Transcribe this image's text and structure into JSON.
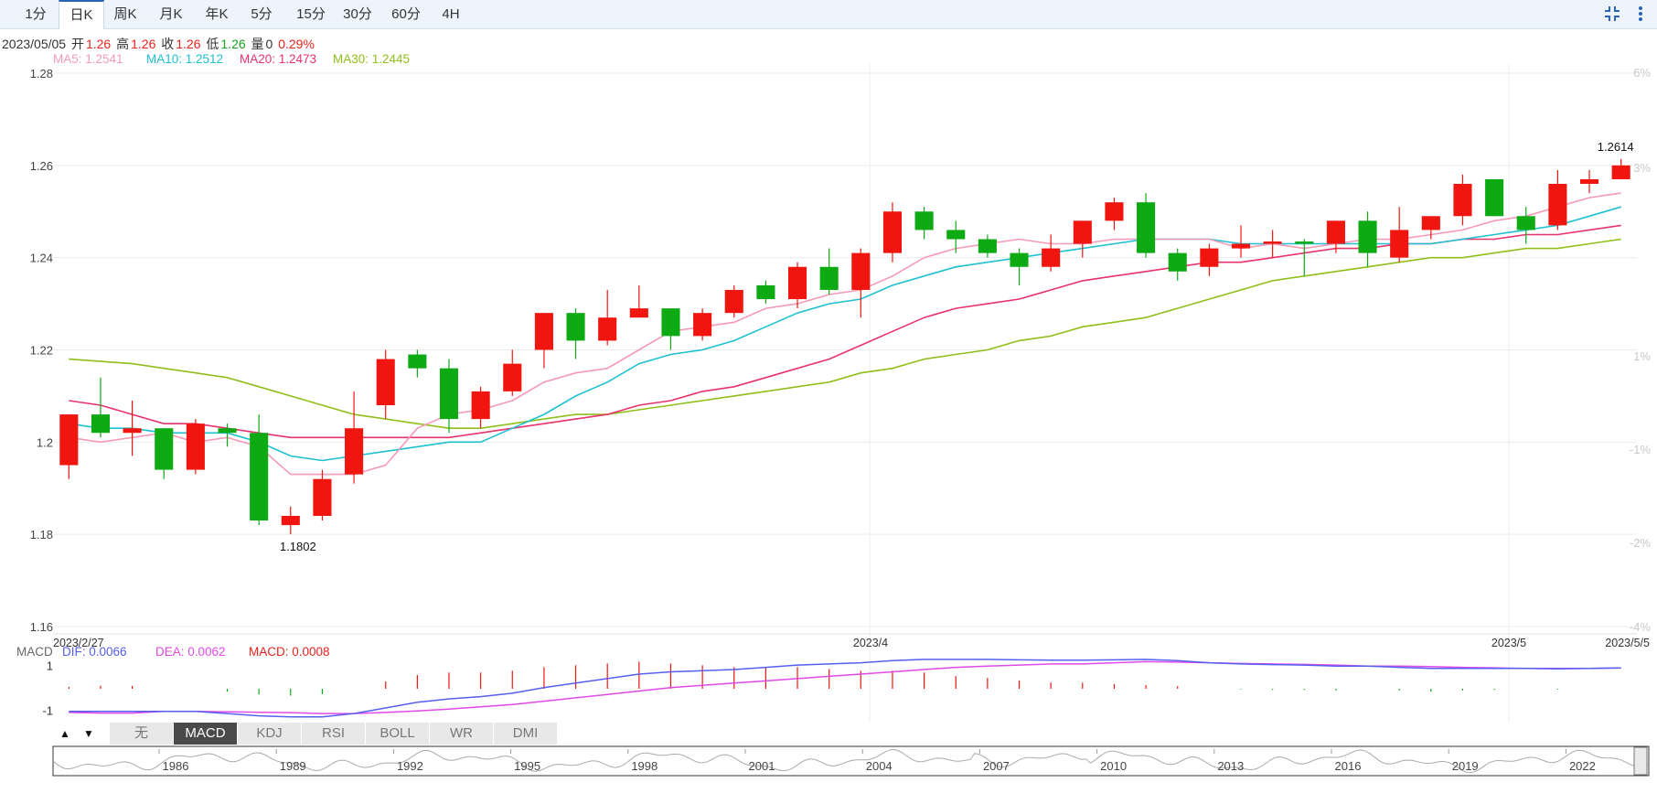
{
  "tabs": [
    {
      "label": "1分",
      "active": false
    },
    {
      "label": "日K",
      "active": true
    },
    {
      "label": "周K",
      "active": false
    },
    {
      "label": "月K",
      "active": false
    },
    {
      "label": "年K",
      "active": false
    },
    {
      "label": "5分",
      "active": false
    },
    {
      "label": "15分",
      "active": false
    },
    {
      "label": "30分",
      "active": false
    },
    {
      "label": "60分",
      "active": false
    },
    {
      "label": "4H",
      "active": false
    }
  ],
  "icons": {
    "collapse": "collapse-icon",
    "more": "more-vertical-icon"
  },
  "info": {
    "date": "2023/05/05",
    "open_label": "开",
    "open": "1.26",
    "high_label": "高",
    "high": "1.26",
    "close_label": "收",
    "close": "1.26",
    "low_label": "低",
    "low": "1.26",
    "vol_label": "量",
    "vol": "0",
    "change": "0.29%"
  },
  "ma_labels": {
    "ma5": "MA5: 1.2541",
    "ma10": "MA10: 1.2512",
    "ma20": "MA20: 1.2473",
    "ma30": "MA30: 1.2445"
  },
  "macd_labels": {
    "name": "MACD",
    "dif": "DIF: 0.0066",
    "dea": "DEA: 0.0062",
    "macd": "MACD: 0.0008"
  },
  "indicator_buttons": [
    {
      "label": "无",
      "active": false
    },
    {
      "label": "MACD",
      "active": true
    },
    {
      "label": "KDJ",
      "active": false
    },
    {
      "label": "RSI",
      "active": false
    },
    {
      "label": "BOLL",
      "active": false
    },
    {
      "label": "WR",
      "active": false
    },
    {
      "label": "DMI",
      "active": false
    }
  ],
  "colors": {
    "up": "#f0150e",
    "down": "#0eaa14",
    "ma5": "#f49ab8",
    "ma10": "#1ec0d2",
    "ma20": "#e8336a",
    "ma30": "#8fbf1a",
    "dif": "#5560f0",
    "dea": "#e04ae6"
  },
  "chart_data": {
    "type": "candlestick",
    "y_axis": {
      "min": 1.16,
      "max": 1.28,
      "ticks": [
        "1.28",
        "1.26",
        "1.24",
        "1.22",
        "1.2",
        "1.18",
        "1.16"
      ]
    },
    "pct_axis": {
      "ticks": [
        "6%",
        "3%",
        "1%",
        "-1%",
        "-2%",
        "-4%"
      ]
    },
    "x_labels": [
      "2023/2/27",
      "2023/4",
      "2023/5",
      "2023/5/5"
    ],
    "annotations": {
      "low": "1.1802",
      "high": "1.2614"
    },
    "candles": [
      {
        "o": 1.195,
        "c": 1.206,
        "h": 1.206,
        "l": 1.192
      },
      {
        "o": 1.206,
        "c": 1.202,
        "h": 1.214,
        "l": 1.201
      },
      {
        "o": 1.202,
        "c": 1.203,
        "h": 1.209,
        "l": 1.197
      },
      {
        "o": 1.203,
        "c": 1.194,
        "h": 1.203,
        "l": 1.192
      },
      {
        "o": 1.194,
        "c": 1.204,
        "h": 1.205,
        "l": 1.193
      },
      {
        "o": 1.203,
        "c": 1.202,
        "h": 1.204,
        "l": 1.199
      },
      {
        "o": 1.202,
        "c": 1.183,
        "h": 1.206,
        "l": 1.182
      },
      {
        "o": 1.182,
        "c": 1.184,
        "h": 1.186,
        "l": 1.18
      },
      {
        "o": 1.184,
        "c": 1.192,
        "h": 1.194,
        "l": 1.183
      },
      {
        "o": 1.193,
        "c": 1.203,
        "h": 1.211,
        "l": 1.191
      },
      {
        "o": 1.208,
        "c": 1.218,
        "h": 1.22,
        "l": 1.205
      },
      {
        "o": 1.219,
        "c": 1.216,
        "h": 1.22,
        "l": 1.214
      },
      {
        "o": 1.216,
        "c": 1.205,
        "h": 1.218,
        "l": 1.202
      },
      {
        "o": 1.205,
        "c": 1.211,
        "h": 1.212,
        "l": 1.203
      },
      {
        "o": 1.211,
        "c": 1.217,
        "h": 1.22,
        "l": 1.21
      },
      {
        "o": 1.22,
        "c": 1.228,
        "h": 1.228,
        "l": 1.216
      },
      {
        "o": 1.228,
        "c": 1.222,
        "h": 1.229,
        "l": 1.218
      },
      {
        "o": 1.222,
        "c": 1.227,
        "h": 1.233,
        "l": 1.221
      },
      {
        "o": 1.227,
        "c": 1.229,
        "h": 1.234,
        "l": 1.227
      },
      {
        "o": 1.229,
        "c": 1.223,
        "h": 1.229,
        "l": 1.22
      },
      {
        "o": 1.223,
        "c": 1.228,
        "h": 1.229,
        "l": 1.222
      },
      {
        "o": 1.228,
        "c": 1.233,
        "h": 1.234,
        "l": 1.227
      },
      {
        "o": 1.234,
        "c": 1.231,
        "h": 1.235,
        "l": 1.23
      },
      {
        "o": 1.231,
        "c": 1.238,
        "h": 1.239,
        "l": 1.229
      },
      {
        "o": 1.238,
        "c": 1.233,
        "h": 1.242,
        "l": 1.232
      },
      {
        "o": 1.233,
        "c": 1.241,
        "h": 1.242,
        "l": 1.227
      },
      {
        "o": 1.241,
        "c": 1.25,
        "h": 1.252,
        "l": 1.239
      },
      {
        "o": 1.25,
        "c": 1.246,
        "h": 1.251,
        "l": 1.244
      },
      {
        "o": 1.246,
        "c": 1.244,
        "h": 1.248,
        "l": 1.241
      },
      {
        "o": 1.244,
        "c": 1.241,
        "h": 1.245,
        "l": 1.24
      },
      {
        "o": 1.241,
        "c": 1.238,
        "h": 1.242,
        "l": 1.234
      },
      {
        "o": 1.238,
        "c": 1.242,
        "h": 1.245,
        "l": 1.237
      },
      {
        "o": 1.243,
        "c": 1.248,
        "h": 1.248,
        "l": 1.24
      },
      {
        "o": 1.248,
        "c": 1.252,
        "h": 1.253,
        "l": 1.246
      },
      {
        "o": 1.252,
        "c": 1.241,
        "h": 1.254,
        "l": 1.24
      },
      {
        "o": 1.241,
        "c": 1.237,
        "h": 1.242,
        "l": 1.235
      },
      {
        "o": 1.238,
        "c": 1.242,
        "h": 1.243,
        "l": 1.236
      },
      {
        "o": 1.242,
        "c": 1.243,
        "h": 1.247,
        "l": 1.24
      },
      {
        "o": 1.243,
        "c": 1.2435,
        "h": 1.246,
        "l": 1.24
      },
      {
        "o": 1.2435,
        "c": 1.243,
        "h": 1.244,
        "l": 1.236
      },
      {
        "o": 1.243,
        "c": 1.248,
        "h": 1.248,
        "l": 1.241
      },
      {
        "o": 1.248,
        "c": 1.241,
        "h": 1.25,
        "l": 1.238
      },
      {
        "o": 1.24,
        "c": 1.246,
        "h": 1.251,
        "l": 1.239
      },
      {
        "o": 1.246,
        "c": 1.249,
        "h": 1.249,
        "l": 1.244
      },
      {
        "o": 1.249,
        "c": 1.256,
        "h": 1.258,
        "l": 1.247
      },
      {
        "o": 1.257,
        "c": 1.249,
        "h": 1.257,
        "l": 1.249
      },
      {
        "o": 1.249,
        "c": 1.246,
        "h": 1.251,
        "l": 1.243
      },
      {
        "o": 1.247,
        "c": 1.256,
        "h": 1.259,
        "l": 1.246
      },
      {
        "o": 1.256,
        "c": 1.257,
        "h": 1.259,
        "l": 1.254
      },
      {
        "o": 1.257,
        "c": 1.26,
        "h": 1.2614,
        "l": 1.257
      }
    ],
    "ma5": [
      1.201,
      1.2,
      1.201,
      1.202,
      1.2,
      1.201,
      1.199,
      1.193,
      1.193,
      1.193,
      1.195,
      1.203,
      1.206,
      1.207,
      1.209,
      1.213,
      1.215,
      1.216,
      1.22,
      1.224,
      1.225,
      1.226,
      1.229,
      1.23,
      1.232,
      1.233,
      1.236,
      1.24,
      1.242,
      1.243,
      1.244,
      1.243,
      1.243,
      1.244,
      1.244,
      1.244,
      1.244,
      1.242,
      1.243,
      1.242,
      1.243,
      1.244,
      1.244,
      1.245,
      1.246,
      1.248,
      1.249,
      1.251,
      1.253,
      1.254
    ],
    "ma10": [
      1.204,
      1.203,
      1.203,
      1.202,
      1.202,
      1.202,
      1.2,
      1.197,
      1.196,
      1.197,
      1.198,
      1.199,
      1.2,
      1.2,
      1.203,
      1.206,
      1.21,
      1.213,
      1.217,
      1.219,
      1.22,
      1.222,
      1.225,
      1.228,
      1.23,
      1.231,
      1.234,
      1.236,
      1.238,
      1.239,
      1.24,
      1.241,
      1.242,
      1.243,
      1.244,
      1.244,
      1.244,
      1.243,
      1.243,
      1.243,
      1.243,
      1.243,
      1.243,
      1.243,
      1.244,
      1.245,
      1.246,
      1.247,
      1.249,
      1.251
    ],
    "ma20": [
      1.209,
      1.208,
      1.206,
      1.204,
      1.204,
      1.203,
      1.202,
      1.201,
      1.201,
      1.201,
      1.201,
      1.201,
      1.201,
      1.202,
      1.203,
      1.204,
      1.205,
      1.206,
      1.208,
      1.209,
      1.211,
      1.212,
      1.214,
      1.216,
      1.218,
      1.221,
      1.224,
      1.227,
      1.229,
      1.23,
      1.231,
      1.233,
      1.235,
      1.236,
      1.237,
      1.238,
      1.239,
      1.239,
      1.24,
      1.241,
      1.242,
      1.242,
      1.243,
      1.243,
      1.244,
      1.244,
      1.245,
      1.245,
      1.246,
      1.247
    ],
    "ma30": [
      1.218,
      1.2175,
      1.217,
      1.216,
      1.215,
      1.214,
      1.212,
      1.21,
      1.208,
      1.206,
      1.205,
      1.204,
      1.203,
      1.203,
      1.204,
      1.205,
      1.206,
      1.206,
      1.207,
      1.208,
      1.209,
      1.21,
      1.211,
      1.212,
      1.213,
      1.215,
      1.216,
      1.218,
      1.219,
      1.22,
      1.222,
      1.223,
      1.225,
      1.226,
      1.227,
      1.229,
      1.231,
      1.233,
      1.235,
      1.236,
      1.237,
      1.238,
      1.239,
      1.24,
      1.24,
      1.241,
      1.242,
      1.242,
      1.243,
      1.244
    ],
    "macd_axis": {
      "ticks": [
        "1",
        "-1"
      ]
    },
    "dif": [
      -1.0,
      -1.0,
      -1.0,
      -1.0,
      -1.0,
      -1.1,
      -1.2,
      -1.25,
      -1.25,
      -1.1,
      -0.85,
      -0.6,
      -0.45,
      -0.35,
      -0.2,
      0.05,
      0.25,
      0.45,
      0.65,
      0.75,
      0.8,
      0.85,
      0.95,
      1.05,
      1.1,
      1.15,
      1.25,
      1.3,
      1.3,
      1.3,
      1.28,
      1.27,
      1.27,
      1.28,
      1.3,
      1.25,
      1.15,
      1.1,
      1.07,
      1.05,
      1.0,
      1.0,
      0.95,
      0.9,
      0.9,
      0.9,
      0.9,
      0.88,
      0.9,
      0.92
    ],
    "dea": [
      -1.05,
      -1.08,
      -1.08,
      -1.0,
      -1.0,
      -1.02,
      -1.04,
      -1.06,
      -1.1,
      -1.1,
      -1.05,
      -0.98,
      -0.9,
      -0.8,
      -0.7,
      -0.55,
      -0.4,
      -0.25,
      -0.1,
      0.05,
      0.15,
      0.25,
      0.35,
      0.45,
      0.55,
      0.65,
      0.75,
      0.85,
      0.95,
      1.0,
      1.05,
      1.1,
      1.1,
      1.15,
      1.2,
      1.18,
      1.15,
      1.12,
      1.1,
      1.08,
      1.05,
      1.0,
      1.0,
      0.98,
      0.95,
      0.93,
      0.9,
      0.9,
      0.9,
      0.92
    ],
    "navigator_years": [
      "1986",
      "1989",
      "1992",
      "1995",
      "1998",
      "2001",
      "2004",
      "2007",
      "2010",
      "2013",
      "2016",
      "2019",
      "2022"
    ]
  }
}
